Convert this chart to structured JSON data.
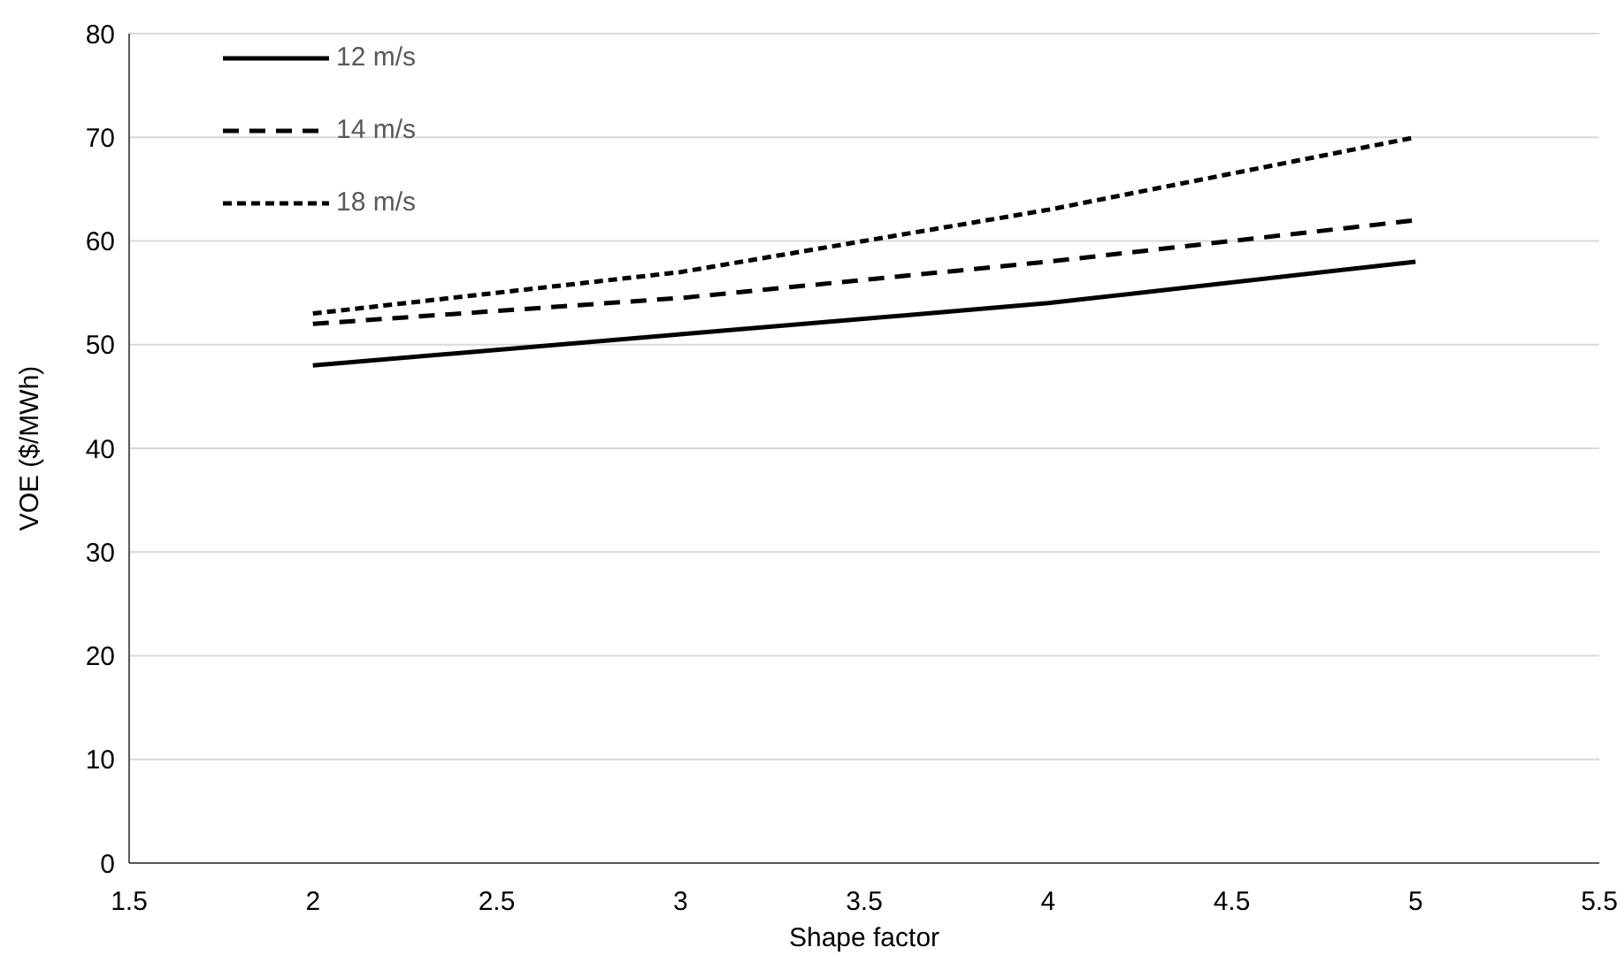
{
  "chart_data": {
    "type": "line",
    "xlabel": "Shape factor",
    "ylabel": "VOE ($/MWh)",
    "x": [
      2,
      3,
      4,
      5
    ],
    "series": [
      {
        "name": "12 m/s",
        "color": "#000000",
        "line_style": "solid",
        "values": [
          48,
          51,
          54,
          58
        ]
      },
      {
        "name": "14 m/s",
        "color": "#000000",
        "line_style": "dashed",
        "values": [
          52,
          54.5,
          58,
          62
        ]
      },
      {
        "name": "18 m/s",
        "color": "#000000",
        "line_style": "dotted",
        "values": [
          53,
          57,
          63,
          70
        ]
      }
    ],
    "xlim": [
      1.5,
      5.5
    ],
    "xticks": [
      1.5,
      2,
      2.5,
      3,
      3.5,
      4,
      4.5,
      5,
      5.5
    ],
    "ylim": [
      0,
      80
    ],
    "yticks": [
      0,
      10,
      20,
      30,
      40,
      50,
      60,
      70,
      80
    ],
    "grid": "y",
    "legend": "top left",
    "marker": "none"
  }
}
